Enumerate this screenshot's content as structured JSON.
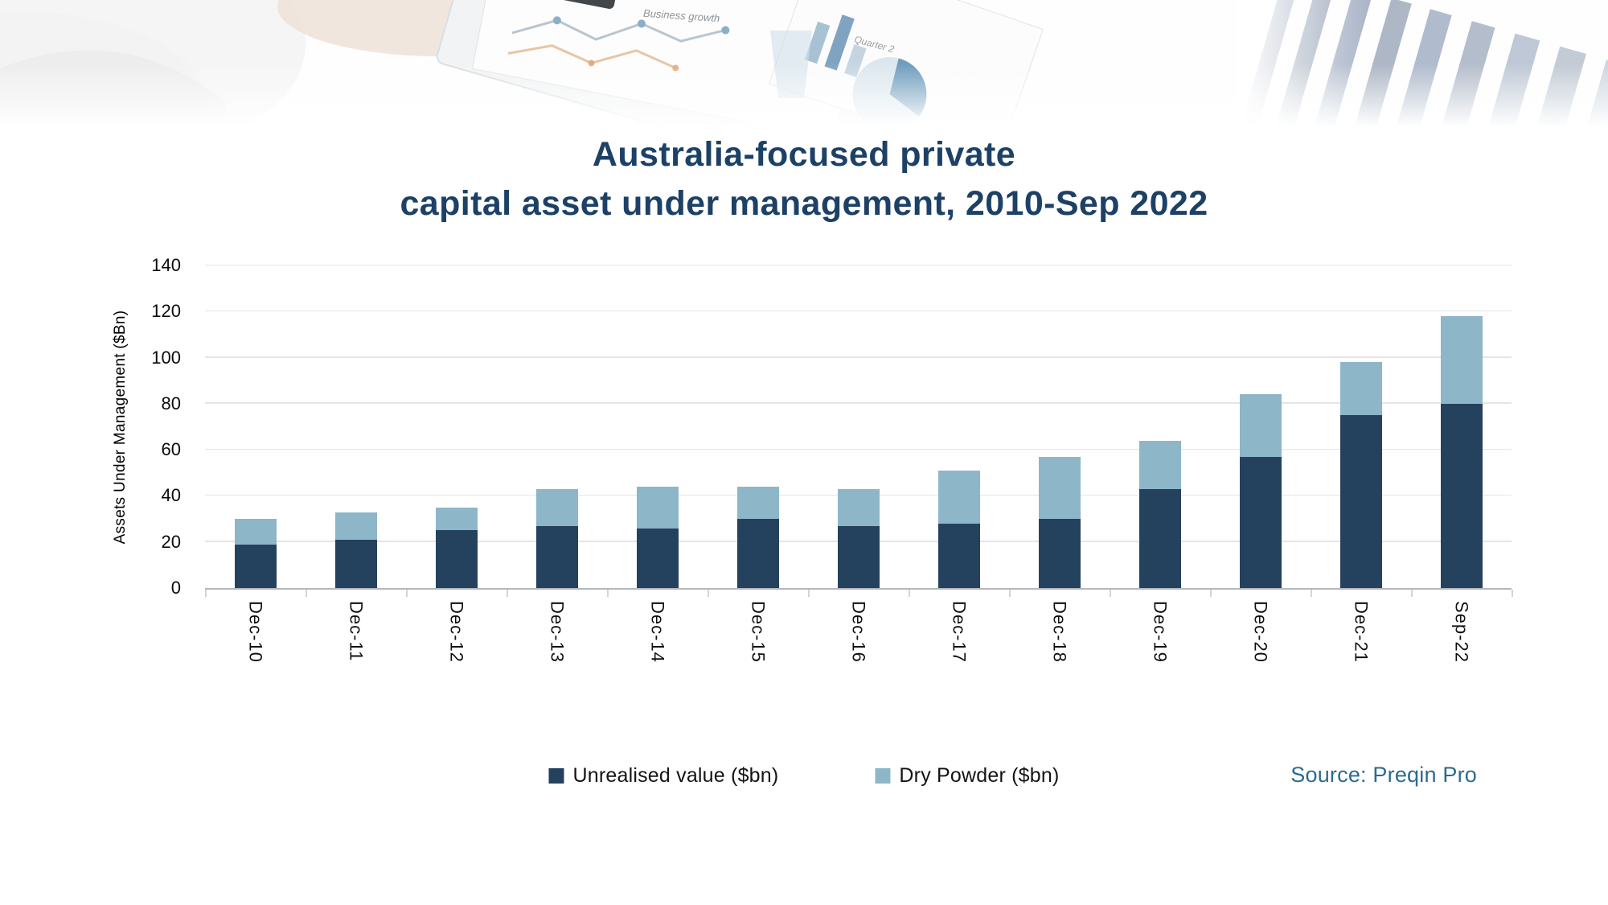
{
  "banner": {
    "caption1": "Business growth",
    "caption2": "Quarter 2"
  },
  "title": {
    "line1": "Australia-focused private",
    "line2": "capital asset under management, 2010-Sep 2022"
  },
  "source": "Source: Preqin Pro",
  "colors": {
    "title_navy": "#1d4166",
    "unrealised_bar": "#24425e",
    "dry_powder_bar": "#8db6c9",
    "source_text": "#2b6b8e",
    "gridline": "#e5e5e5"
  },
  "chart_data": {
    "type": "bar",
    "stacked": true,
    "title": "Australia-focused private capital asset under management, 2010-Sep 2022",
    "xlabel": "",
    "ylabel": "Assets Under Management ($Bn)",
    "ylim": [
      0,
      140
    ],
    "ytick_step": 20,
    "grid": true,
    "legend_position": "bottom",
    "categories": [
      "Dec-10",
      "Dec-11",
      "Dec-12",
      "Dec-13",
      "Dec-14",
      "Dec-15",
      "Dec-16",
      "Dec-17",
      "Dec-18",
      "Dec-19",
      "Dec-20",
      "Dec-21",
      "Sep-22"
    ],
    "series": [
      {
        "name": "Unrealised value ($bn)",
        "color": "#24425e",
        "values": [
          19,
          21,
          25,
          27,
          26,
          30,
          27,
          28,
          30,
          43,
          57,
          75,
          80
        ]
      },
      {
        "name": "Dry Powder ($bn)",
        "color": "#8db6c9",
        "values": [
          11,
          12,
          10,
          16,
          18,
          14,
          16,
          23,
          27,
          21,
          27,
          23,
          38
        ]
      }
    ],
    "totals": [
      30,
      33,
      35,
      43,
      44,
      44,
      43,
      51,
      57,
      64,
      84,
      98,
      118
    ]
  }
}
